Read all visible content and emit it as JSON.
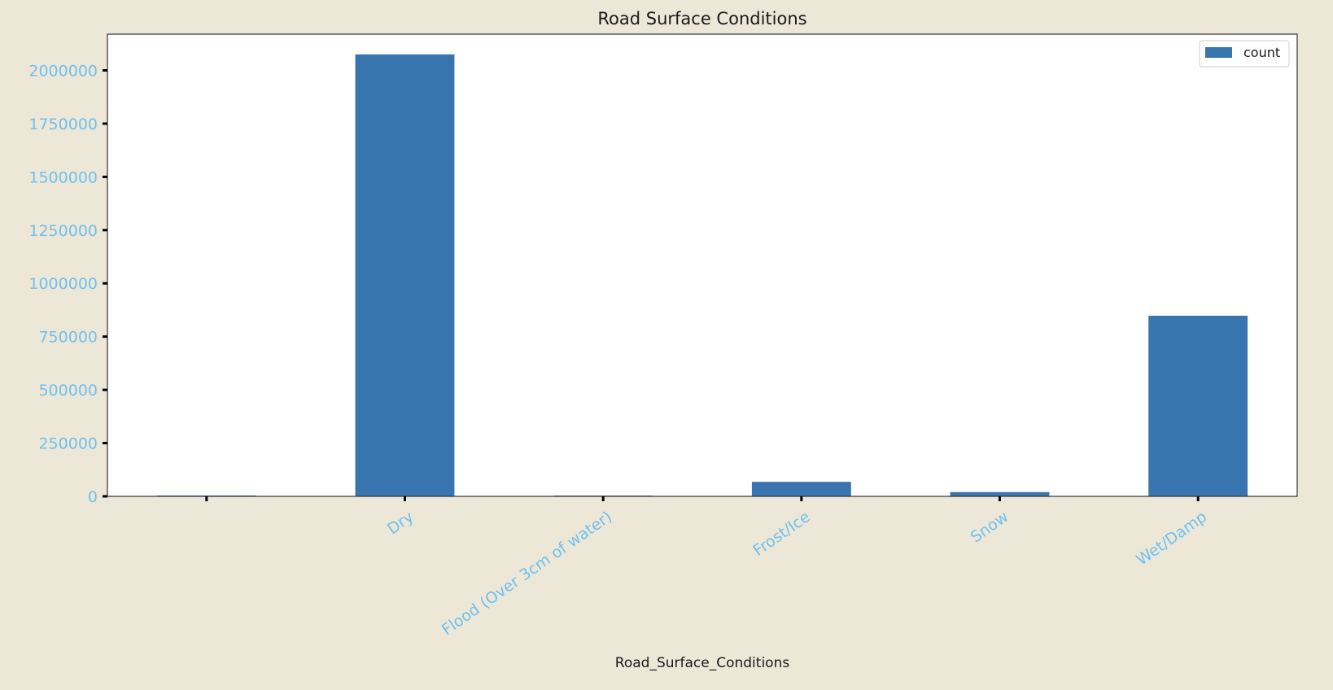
{
  "colors": {
    "figure_background": "#ede7d8",
    "plot_background": "#ffffff",
    "bar": "#3874ad",
    "tick_labels": "#6ec1ee",
    "text": "#1a1a1a",
    "axes_edge": "#333333"
  },
  "chart_data": {
    "type": "bar",
    "title": "Road Surface Conditions",
    "xlabel": "Road_Surface_Conditions",
    "ylabel": "",
    "categories": [
      "",
      "Dry",
      "Flood (Over 3cm of water)",
      "Frost/Ice",
      "Snow",
      "Wet/Damp"
    ],
    "series": [
      {
        "name": "count",
        "values": [
          4000,
          2075000,
          3500,
          68000,
          20000,
          848000
        ]
      }
    ],
    "ylim": [
      0,
      2170000
    ],
    "yticks": [
      0,
      250000,
      500000,
      750000,
      1000000,
      1250000,
      1500000,
      1750000,
      2000000
    ],
    "ytick_labels": [
      "0",
      "250000",
      "500000",
      "750000",
      "1000000",
      "1250000",
      "1500000",
      "1750000",
      "2000000"
    ],
    "grid": false,
    "legend_position": "top-right",
    "xtick_rotation_deg": -35
  }
}
